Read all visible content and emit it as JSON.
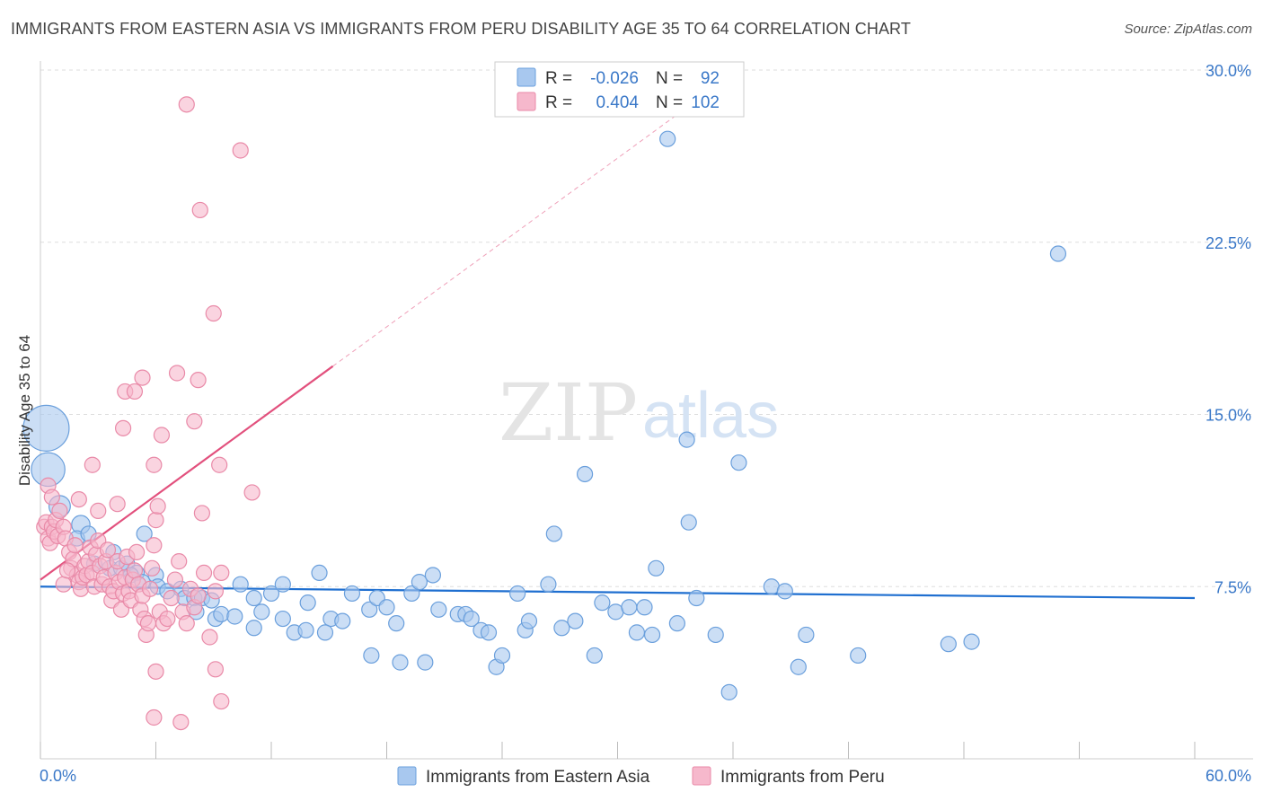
{
  "title": "IMMIGRANTS FROM EASTERN ASIA VS IMMIGRANTS FROM PERU DISABILITY AGE 35 TO 64 CORRELATION CHART",
  "source": "Source: ZipAtlas.com",
  "watermark": {
    "zip": "ZIP",
    "atlas": "atlas"
  },
  "colors": {
    "blue_fill": "#a8c8ef",
    "blue_stroke": "#6a9fdc",
    "blue_line": "#1f6fd0",
    "pink_fill": "#f6b8cc",
    "pink_stroke": "#e98aa8",
    "pink_line": "#e2507d",
    "tick_label": "#3a78c8",
    "grid": "#dddddd"
  },
  "legend": {
    "rows": [
      {
        "r_label": "R =",
        "r_value": "-0.026",
        "n_label": "N =",
        "n_value": "92"
      },
      {
        "r_label": "R =",
        "r_value": "0.404",
        "n_label": "N =",
        "n_value": "102"
      }
    ]
  },
  "chart_data": {
    "type": "scatter",
    "xlabel": "",
    "ylabel": "Disability Age 35 to 64",
    "xlim": [
      0,
      60
    ],
    "ylim": [
      0,
      30
    ],
    "x_tick_labels": [
      "0.0%",
      "60.0%"
    ],
    "y_ticks": [
      7.5,
      15.0,
      22.5,
      30.0
    ],
    "y_tick_labels": [
      "7.5%",
      "15.0%",
      "22.5%",
      "30.0%"
    ],
    "grid": true,
    "legend_position": "top-center",
    "series": [
      {
        "name": "Immigrants from Eastern Asia",
        "color": "blue",
        "trend": {
          "x0": 0,
          "y0": 7.5,
          "x1": 60,
          "y1": 7.0
        },
        "points": [
          [
            0.3,
            14.4,
            3
          ],
          [
            0.4,
            12.6,
            2.2
          ],
          [
            1.0,
            11.0,
            1.4
          ],
          [
            2.1,
            10.2,
            1.2
          ],
          [
            1.9,
            9.6,
            1
          ],
          [
            2.5,
            9.8,
            1
          ],
          [
            3.8,
            9.0,
            1
          ],
          [
            5.4,
            9.8,
            1
          ],
          [
            2.8,
            8.5,
            1
          ],
          [
            3.6,
            8.3,
            1
          ],
          [
            4.2,
            8.3,
            1
          ],
          [
            4.5,
            8.5,
            1
          ],
          [
            5.0,
            8.1,
            1
          ],
          [
            4.7,
            8.0,
            1
          ],
          [
            5.3,
            7.7,
            1
          ],
          [
            6.0,
            8.0,
            1
          ],
          [
            6.1,
            7.5,
            1
          ],
          [
            6.6,
            7.3,
            1
          ],
          [
            7.3,
            7.4,
            1
          ],
          [
            7.5,
            7.0,
            1
          ],
          [
            8.0,
            7.0,
            1
          ],
          [
            8.4,
            7.0,
            1
          ],
          [
            8.9,
            6.9,
            1
          ],
          [
            8.1,
            6.4,
            1
          ],
          [
            9.1,
            6.1,
            1
          ],
          [
            9.4,
            6.3,
            1
          ],
          [
            10.1,
            6.2,
            1
          ],
          [
            10.4,
            7.6,
            1
          ],
          [
            11.1,
            7.0,
            1
          ],
          [
            11.5,
            6.4,
            1
          ],
          [
            11.1,
            5.7,
            1
          ],
          [
            12.0,
            7.2,
            1
          ],
          [
            12.6,
            7.6,
            1
          ],
          [
            12.6,
            6.1,
            1
          ],
          [
            13.2,
            5.5,
            1
          ],
          [
            13.8,
            5.6,
            1
          ],
          [
            13.9,
            6.8,
            1
          ],
          [
            14.5,
            8.1,
            1
          ],
          [
            15.1,
            6.1,
            1
          ],
          [
            14.8,
            5.5,
            1
          ],
          [
            15.7,
            6.0,
            1
          ],
          [
            16.2,
            7.2,
            1
          ],
          [
            17.1,
            6.5,
            1
          ],
          [
            17.5,
            7.0,
            1
          ],
          [
            17.2,
            4.5,
            1
          ],
          [
            18.0,
            6.6,
            1
          ],
          [
            18.5,
            5.9,
            1
          ],
          [
            18.7,
            4.2,
            1
          ],
          [
            19.3,
            7.2,
            1
          ],
          [
            19.7,
            7.7,
            1
          ],
          [
            20.0,
            4.2,
            1
          ],
          [
            20.4,
            8.0,
            1
          ],
          [
            20.7,
            6.5,
            1
          ],
          [
            21.7,
            6.3,
            1
          ],
          [
            22.1,
            6.3,
            1
          ],
          [
            22.4,
            6.1,
            1
          ],
          [
            22.9,
            5.6,
            1
          ],
          [
            23.3,
            5.5,
            1
          ],
          [
            23.7,
            4.0,
            1
          ],
          [
            24.0,
            4.5,
            1
          ],
          [
            24.8,
            7.2,
            1
          ],
          [
            25.2,
            5.6,
            1
          ],
          [
            25.4,
            6.0,
            1
          ],
          [
            26.4,
            7.6,
            1
          ],
          [
            26.7,
            9.8,
            1
          ],
          [
            27.1,
            5.7,
            1
          ],
          [
            27.8,
            6.0,
            1
          ],
          [
            28.3,
            12.4,
            1
          ],
          [
            28.8,
            4.5,
            1
          ],
          [
            29.2,
            6.8,
            1
          ],
          [
            29.9,
            6.4,
            1
          ],
          [
            30.6,
            6.6,
            1
          ],
          [
            31.0,
            5.5,
            1
          ],
          [
            31.4,
            6.6,
            1
          ],
          [
            31.8,
            5.4,
            1
          ],
          [
            32.0,
            8.3,
            1
          ],
          [
            33.1,
            5.9,
            1
          ],
          [
            32.6,
            27.0,
            1
          ],
          [
            33.6,
            13.9,
            1
          ],
          [
            33.7,
            10.3,
            1
          ],
          [
            34.1,
            7.0,
            1
          ],
          [
            35.1,
            5.4,
            1
          ],
          [
            35.8,
            2.9,
            1
          ],
          [
            36.3,
            12.9,
            1
          ],
          [
            38.0,
            7.5,
            1
          ],
          [
            38.7,
            7.3,
            1
          ],
          [
            39.4,
            4.0,
            1
          ],
          [
            39.8,
            5.4,
            1
          ],
          [
            42.5,
            4.5,
            1
          ],
          [
            47.2,
            5.0,
            1
          ],
          [
            48.4,
            5.1,
            1
          ],
          [
            52.9,
            22.0,
            1
          ]
        ]
      },
      {
        "name": "Immigrants from Peru",
        "color": "pink",
        "trend": {
          "x0": 0,
          "y0": 7.8,
          "x1": 15.2,
          "y1": 17.1,
          "dash_x1": 33.0,
          "dash_y1": 28.0
        },
        "points": [
          [
            0.2,
            10.1,
            1
          ],
          [
            0.3,
            10.3,
            1
          ],
          [
            0.4,
            9.6,
            1
          ],
          [
            0.5,
            9.4,
            1
          ],
          [
            0.6,
            10.1,
            1
          ],
          [
            0.7,
            9.9,
            1
          ],
          [
            0.8,
            10.4,
            1
          ],
          [
            0.9,
            9.7,
            1
          ],
          [
            0.4,
            11.9,
            1
          ],
          [
            0.6,
            11.4,
            1
          ],
          [
            1.0,
            10.8,
            1
          ],
          [
            1.2,
            10.1,
            1
          ],
          [
            1.3,
            9.6,
            1
          ],
          [
            1.5,
            9.0,
            1
          ],
          [
            1.6,
            8.3,
            1
          ],
          [
            1.7,
            8.7,
            1
          ],
          [
            1.8,
            9.3,
            1
          ],
          [
            1.9,
            8.0,
            1
          ],
          [
            2.0,
            7.7,
            1
          ],
          [
            2.1,
            7.4,
            1
          ],
          [
            2.2,
            7.9,
            1
          ],
          [
            2.3,
            8.4,
            1
          ],
          [
            2.4,
            8.0,
            1
          ],
          [
            2.5,
            8.6,
            1
          ],
          [
            2.6,
            9.2,
            1
          ],
          [
            2.7,
            8.1,
            1
          ],
          [
            2.8,
            7.5,
            1
          ],
          [
            2.9,
            8.9,
            1
          ],
          [
            3.0,
            9.5,
            1
          ],
          [
            3.1,
            8.4,
            1
          ],
          [
            3.2,
            7.6,
            1
          ],
          [
            3.3,
            7.9,
            1
          ],
          [
            3.4,
            8.6,
            1
          ],
          [
            3.5,
            9.1,
            1
          ],
          [
            3.6,
            7.5,
            1
          ],
          [
            3.7,
            6.9,
            1
          ],
          [
            3.8,
            7.3,
            1
          ],
          [
            3.9,
            8.1,
            1
          ],
          [
            4.0,
            8.6,
            1
          ],
          [
            4.1,
            7.7,
            1
          ],
          [
            4.2,
            6.5,
            1
          ],
          [
            4.3,
            7.2,
            1
          ],
          [
            4.4,
            7.9,
            1
          ],
          [
            4.5,
            8.8,
            1
          ],
          [
            4.6,
            7.3,
            1
          ],
          [
            4.7,
            6.9,
            1
          ],
          [
            4.8,
            7.8,
            1
          ],
          [
            4.9,
            8.2,
            1
          ],
          [
            5.0,
            9.0,
            1
          ],
          [
            5.1,
            7.6,
            1
          ],
          [
            5.2,
            6.5,
            1
          ],
          [
            5.3,
            7.1,
            1
          ],
          [
            5.4,
            6.1,
            1
          ],
          [
            5.5,
            5.4,
            1
          ],
          [
            5.6,
            5.9,
            1
          ],
          [
            5.7,
            7.4,
            1
          ],
          [
            5.8,
            8.3,
            1
          ],
          [
            5.9,
            9.3,
            1
          ],
          [
            6.0,
            10.4,
            1
          ],
          [
            6.1,
            11.0,
            1
          ],
          [
            6.2,
            6.4,
            1
          ],
          [
            6.4,
            5.9,
            1
          ],
          [
            6.6,
            6.1,
            1
          ],
          [
            6.8,
            7.0,
            1
          ],
          [
            7.0,
            7.8,
            1
          ],
          [
            7.2,
            8.6,
            1
          ],
          [
            7.4,
            6.4,
            1
          ],
          [
            7.6,
            5.9,
            1
          ],
          [
            7.8,
            7.4,
            1
          ],
          [
            8.0,
            6.6,
            1
          ],
          [
            8.2,
            7.1,
            1
          ],
          [
            8.5,
            8.1,
            1
          ],
          [
            8.8,
            5.3,
            1
          ],
          [
            9.1,
            7.3,
            1
          ],
          [
            9.4,
            8.1,
            1
          ],
          [
            1.2,
            7.6,
            1
          ],
          [
            1.4,
            8.2,
            1
          ],
          [
            2.0,
            11.3,
            1
          ],
          [
            2.7,
            12.8,
            1
          ],
          [
            3.0,
            10.8,
            1
          ],
          [
            4.0,
            11.1,
            1
          ],
          [
            4.3,
            14.4,
            1
          ],
          [
            4.4,
            16.0,
            1
          ],
          [
            4.9,
            16.0,
            1
          ],
          [
            5.3,
            16.6,
            1
          ],
          [
            5.9,
            12.8,
            1
          ],
          [
            6.3,
            14.1,
            1
          ],
          [
            6.0,
            3.8,
            1
          ],
          [
            5.9,
            1.8,
            1
          ],
          [
            7.1,
            16.8,
            1
          ],
          [
            7.3,
            1.6,
            1
          ],
          [
            7.6,
            28.5,
            1
          ],
          [
            8.0,
            14.7,
            1
          ],
          [
            8.2,
            16.5,
            1
          ],
          [
            8.3,
            23.9,
            1
          ],
          [
            8.4,
            10.7,
            1
          ],
          [
            9.0,
            19.4,
            1
          ],
          [
            9.1,
            3.9,
            1
          ],
          [
            9.3,
            12.8,
            1
          ],
          [
            9.4,
            2.5,
            1
          ],
          [
            10.4,
            26.5,
            1
          ],
          [
            11.0,
            11.6,
            1
          ]
        ]
      }
    ]
  },
  "bottom_legend": [
    "Immigrants from Eastern Asia",
    "Immigrants from Peru"
  ]
}
